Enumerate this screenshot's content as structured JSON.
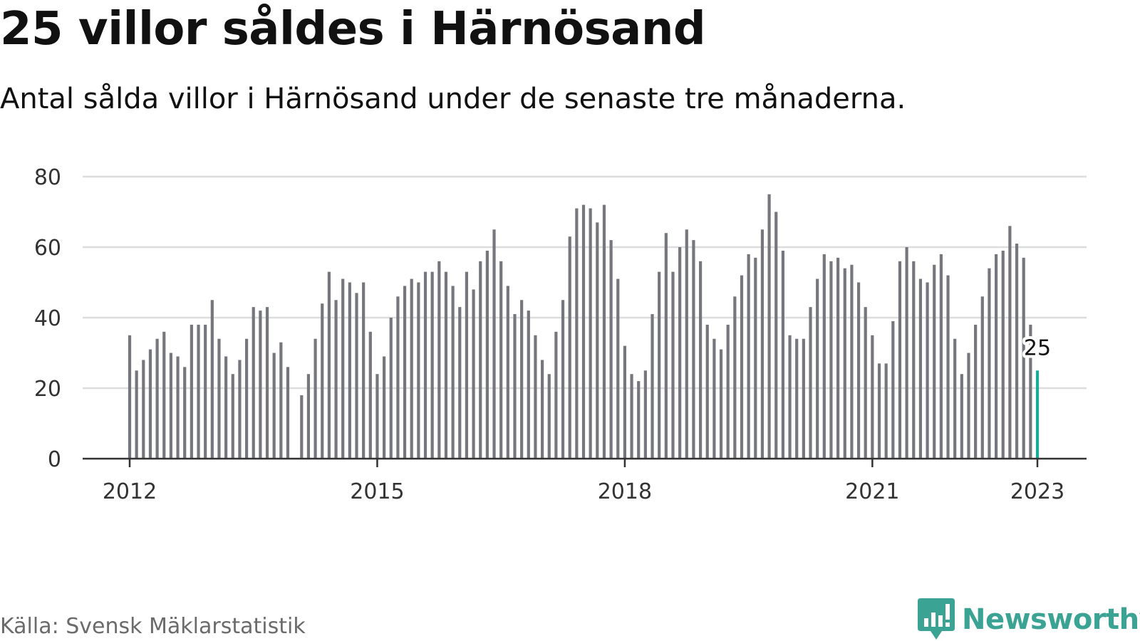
{
  "header": {
    "title": "25 villor såldes i Härnösand",
    "subtitle": "Antal sålda villor i Härnösand under de senaste tre månaderna."
  },
  "footer": {
    "source": "Källa: Svensk Mäklarstatistik",
    "brand": "Newsworthy"
  },
  "colors": {
    "bar": "#76767d",
    "highlight": "#1aab9b",
    "grid": "#dddddd",
    "axis": "#333333",
    "brand": "#3aa394"
  },
  "icons": {
    "brand": "newsworthy-logo-icon"
  },
  "chart_data": {
    "type": "bar",
    "title": "25 villor såldes i Härnösand",
    "subtitle": "Antal sålda villor i Härnösand under de senaste tre månaderna.",
    "xlabel": "",
    "ylabel": "",
    "ylim": [
      0,
      80
    ],
    "yticks": [
      0,
      20,
      40,
      60,
      80
    ],
    "xticks": [
      "2012",
      "2015",
      "2018",
      "2021",
      "2023"
    ],
    "grid": true,
    "legend": "none",
    "categories": [
      "2012-01",
      "2012-02",
      "2012-03",
      "2012-04",
      "2012-05",
      "2012-06",
      "2012-07",
      "2012-08",
      "2012-09",
      "2012-10",
      "2012-11",
      "2012-12",
      "2013-01",
      "2013-02",
      "2013-03",
      "2013-04",
      "2013-05",
      "2013-06",
      "2013-07",
      "2013-08",
      "2013-09",
      "2013-10",
      "2013-11",
      "2013-12",
      "2014-01",
      "2014-02",
      "2014-03",
      "2014-04",
      "2014-05",
      "2014-06",
      "2014-07",
      "2014-08",
      "2014-09",
      "2014-10",
      "2014-11",
      "2014-12",
      "2015-01",
      "2015-02",
      "2015-03",
      "2015-04",
      "2015-05",
      "2015-06",
      "2015-07",
      "2015-08",
      "2015-09",
      "2015-10",
      "2015-11",
      "2015-12",
      "2016-01",
      "2016-02",
      "2016-03",
      "2016-04",
      "2016-05",
      "2016-06",
      "2016-07",
      "2016-08",
      "2016-09",
      "2016-10",
      "2016-11",
      "2016-12",
      "2017-01",
      "2017-02",
      "2017-03",
      "2017-04",
      "2017-05",
      "2017-06",
      "2017-07",
      "2017-08",
      "2017-09",
      "2017-10",
      "2017-11",
      "2017-12",
      "2018-01",
      "2018-02",
      "2018-03",
      "2018-04",
      "2018-05",
      "2018-06",
      "2018-07",
      "2018-08",
      "2018-09",
      "2018-10",
      "2018-11",
      "2018-12",
      "2019-01",
      "2019-02",
      "2019-03",
      "2019-04",
      "2019-05",
      "2019-06",
      "2019-07",
      "2019-08",
      "2019-09",
      "2019-10",
      "2019-11",
      "2019-12",
      "2020-01",
      "2020-02",
      "2020-03",
      "2020-04",
      "2020-05",
      "2020-06",
      "2020-07",
      "2020-08",
      "2020-09",
      "2020-10",
      "2020-11",
      "2020-12",
      "2021-01",
      "2021-02",
      "2021-03",
      "2021-04",
      "2021-05",
      "2021-06",
      "2021-07",
      "2021-08",
      "2021-09",
      "2021-10",
      "2021-11",
      "2021-12",
      "2022-01",
      "2022-02",
      "2022-03",
      "2022-04",
      "2022-05",
      "2022-06",
      "2022-07",
      "2022-08",
      "2022-09",
      "2022-10",
      "2022-11",
      "2022-12",
      "2023-01"
    ],
    "values": [
      35,
      25,
      28,
      31,
      34,
      36,
      30,
      29,
      26,
      38,
      38,
      38,
      45,
      34,
      29,
      24,
      28,
      34,
      43,
      42,
      43,
      30,
      33,
      26,
      null,
      18,
      24,
      34,
      44,
      53,
      45,
      51,
      50,
      47,
      50,
      36,
      24,
      29,
      40,
      46,
      49,
      51,
      50,
      53,
      53,
      56,
      53,
      49,
      43,
      53,
      48,
      56,
      59,
      65,
      56,
      49,
      41,
      45,
      42,
      35,
      28,
      24,
      36,
      45,
      63,
      71,
      72,
      71,
      67,
      72,
      62,
      51,
      32,
      24,
      22,
      25,
      41,
      53,
      64,
      53,
      60,
      65,
      62,
      56,
      38,
      34,
      31,
      38,
      46,
      52,
      58,
      57,
      65,
      75,
      70,
      59,
      35,
      34,
      34,
      43,
      51,
      58,
      56,
      57,
      54,
      55,
      50,
      43,
      35,
      27,
      27,
      39,
      56,
      60,
      56,
      51,
      50,
      55,
      58,
      52,
      34,
      24,
      30,
      38,
      46,
      54,
      58,
      59,
      66,
      61,
      57,
      38,
      25
    ],
    "highlight_index": 132,
    "highlight_label": "25"
  }
}
